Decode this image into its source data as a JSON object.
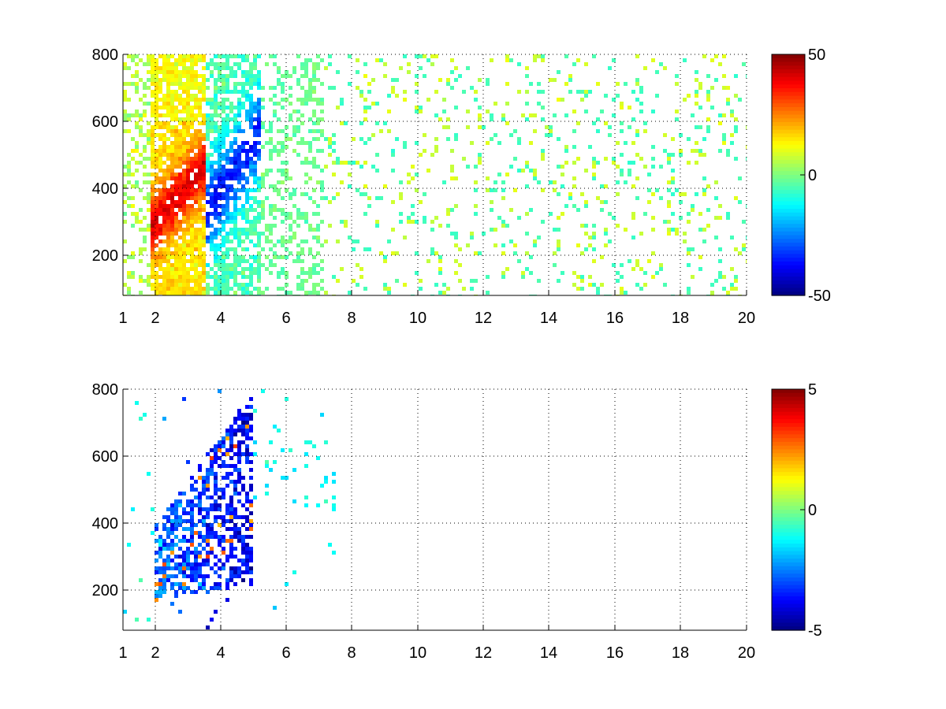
{
  "chart_data": [
    {
      "type": "heatmap",
      "title": "",
      "xlabel": "",
      "ylabel": "",
      "xlim": [
        1,
        20
      ],
      "ylim": [
        80,
        800
      ],
      "x_scale": "linear",
      "x_ticks": [
        1,
        2,
        4,
        6,
        8,
        10,
        12,
        14,
        16,
        18,
        20
      ],
      "x_tick_labels": [
        "1",
        "2",
        "4",
        "6",
        "8",
        "10",
        "12",
        "14",
        "16",
        "18",
        "20"
      ],
      "y_ticks": [
        200,
        400,
        600,
        800
      ],
      "y_tick_labels": [
        "200",
        "400",
        "600",
        "800"
      ],
      "grid": true,
      "colormap": "jet",
      "colorbar": {
        "min": -50,
        "max": 50,
        "ticks": [
          50,
          0,
          -50
        ],
        "tick_labels": [
          "50",
          "0",
          "-50"
        ]
      },
      "missing_values": "blank (white)",
      "features": [
        {
          "description": "positive band",
          "x_range": [
            2,
            4
          ],
          "y_range": [
            270,
            780
          ],
          "approx_value": 40
        },
        {
          "description": "negative band",
          "x_range": [
            3.5,
            6
          ],
          "y_range": [
            300,
            650
          ],
          "approx_value": -40
        },
        {
          "description": "sparse scatter",
          "x_range": [
            6,
            20
          ],
          "y_range": [
            80,
            800
          ],
          "approx_value": 0
        }
      ]
    },
    {
      "type": "heatmap",
      "title": "",
      "xlabel": "",
      "ylabel": "",
      "xlim": [
        1,
        20
      ],
      "ylim": [
        80,
        800
      ],
      "x_scale": "linear",
      "x_ticks": [
        1,
        2,
        4,
        6,
        8,
        10,
        12,
        14,
        16,
        18,
        20
      ],
      "x_tick_labels": [
        "1",
        "2",
        "4",
        "6",
        "8",
        "10",
        "12",
        "14",
        "16",
        "18",
        "20"
      ],
      "y_ticks": [
        200,
        400,
        600,
        800
      ],
      "y_tick_labels": [
        "200",
        "400",
        "600",
        "800"
      ],
      "grid": true,
      "colormap": "jet",
      "colorbar": {
        "min": -5,
        "max": 5,
        "ticks": [
          5,
          0,
          -5
        ],
        "tick_labels": [
          "5",
          "0",
          "-5"
        ]
      },
      "missing_values": "blank (white)",
      "features": [
        {
          "description": "negative cluster",
          "x_range": [
            2,
            5
          ],
          "y_range": [
            270,
            780
          ],
          "approx_value": -4
        },
        {
          "description": "sparse scatter",
          "x_range": [
            5,
            7.5
          ],
          "y_range": [
            450,
            650
          ],
          "approx_value": -1
        }
      ]
    }
  ]
}
